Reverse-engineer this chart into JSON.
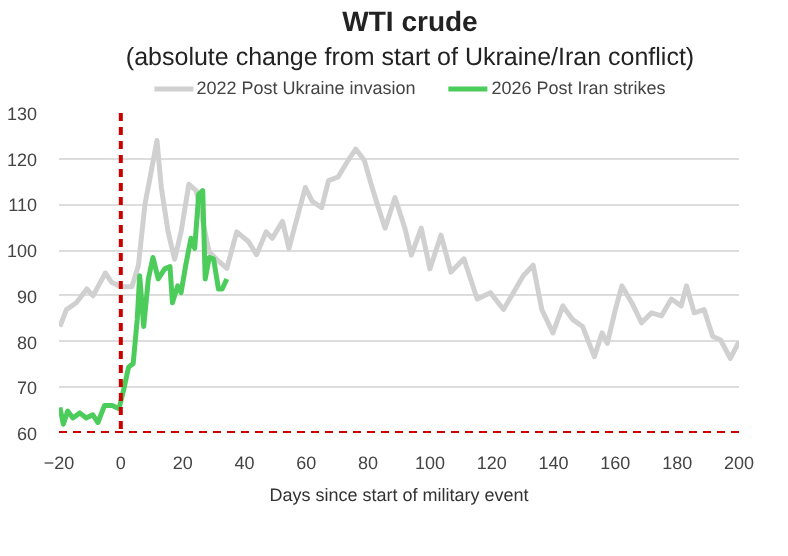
{
  "chart_data": {
    "type": "line",
    "title": "WTI crude",
    "subtitle": "(absolute change from start of Ukraine/Iran conflict)",
    "xlabel": "Days since start of military event",
    "xlim": [
      -20,
      200
    ],
    "ylim": [
      60,
      130
    ],
    "xticks": [
      -20,
      0,
      20,
      40,
      60,
      80,
      100,
      120,
      140,
      160,
      180,
      200
    ],
    "yticks": [
      60,
      70,
      80,
      90,
      100,
      110,
      120,
      130
    ],
    "grid": "y",
    "legend": "top",
    "series": [
      {
        "name": "2022 Post Ukraine invasion",
        "color": "#d0d0d0",
        "x": [
          -19.7,
          -17.6,
          -14.4,
          -11,
          -9,
          -5,
          -3,
          0,
          3.6,
          5.7,
          7.8,
          9.5,
          11.7,
          13.1,
          15.3,
          17.4,
          19.5,
          22,
          24.4,
          26.5,
          28.6,
          31,
          34.3,
          37.5,
          41.3,
          43.9,
          47,
          49,
          52.3,
          54.4,
          57.6,
          59.7,
          61.9,
          65,
          67.2,
          70.3,
          73.5,
          76,
          78.8,
          81,
          83,
          85.5,
          88.7,
          91.9,
          94,
          97.2,
          100,
          103.6,
          106.8,
          111,
          115.3,
          119.6,
          123.8,
          127,
          130.2,
          133.4,
          136.2,
          139.8,
          143,
          146.2,
          149.4,
          153.2,
          155.7,
          157.4,
          160,
          162.1,
          165.3,
          168.5,
          171.7,
          174.9,
          178.1,
          181.3,
          183,
          185.5,
          188.7,
          191.5,
          194,
          197.2,
          200
        ],
        "values": [
          83.3,
          87,
          88.5,
          91.5,
          90,
          95,
          93,
          92,
          92,
          96.7,
          110,
          116,
          124,
          113.7,
          104,
          98,
          104,
          114.4,
          113,
          106.3,
          99.6,
          98,
          96,
          104,
          101.9,
          99,
          104,
          102.6,
          106.3,
          100.4,
          108.5,
          113.7,
          110.7,
          109.3,
          115.2,
          116,
          119.6,
          122.1,
          119.6,
          114.4,
          110,
          104.8,
          111.5,
          104.8,
          98.9,
          104.8,
          95.9,
          103.3,
          95.2,
          98.1,
          89.3,
          90.7,
          87,
          90.7,
          94.4,
          96.7,
          87,
          81.9,
          87.8,
          84.8,
          83.3,
          76.7,
          81.9,
          79.6,
          87,
          92.2,
          88.5,
          84.1,
          86.3,
          85.6,
          89.3,
          87.8,
          92.2,
          86.3,
          87,
          81.1,
          80.4,
          76.3,
          80
        ]
      },
      {
        "name": "2026 Post Iran strikes",
        "color": "#4ccc5a",
        "x": [
          -19.7,
          -18.6,
          -17.2,
          -15.5,
          -13.3,
          -11.2,
          -9.1,
          -7.4,
          -5.3,
          -2.8,
          -0.6,
          1.1,
          2.5,
          4,
          5.3,
          6.1,
          7.4,
          8.9,
          10.4,
          12.1,
          14.2,
          15.9,
          16.7,
          18.4,
          19.5,
          21,
          22.7,
          23.9,
          25.2,
          26.5,
          27.3,
          28.6,
          30,
          31.6,
          32.8,
          34.3
        ],
        "values": [
          65.6,
          61.9,
          64.8,
          63.3,
          64.4,
          63.3,
          64,
          62.3,
          66,
          66,
          65.3,
          70,
          74.4,
          75.2,
          84.8,
          94.4,
          83.3,
          93.7,
          98.4,
          93.7,
          95.9,
          96.4,
          88.5,
          92.2,
          90.7,
          96.7,
          102.6,
          100.4,
          112.2,
          113,
          93.7,
          98.4,
          98.1,
          91.5,
          91.5,
          93.7
        ]
      }
    ],
    "ref_lines": [
      {
        "axis": "x",
        "value": 0,
        "color": "#cc0000",
        "line_style": "dashed"
      },
      {
        "axis": "y",
        "value": 60,
        "color": "#cc0000",
        "line_style": "dashed"
      }
    ]
  }
}
